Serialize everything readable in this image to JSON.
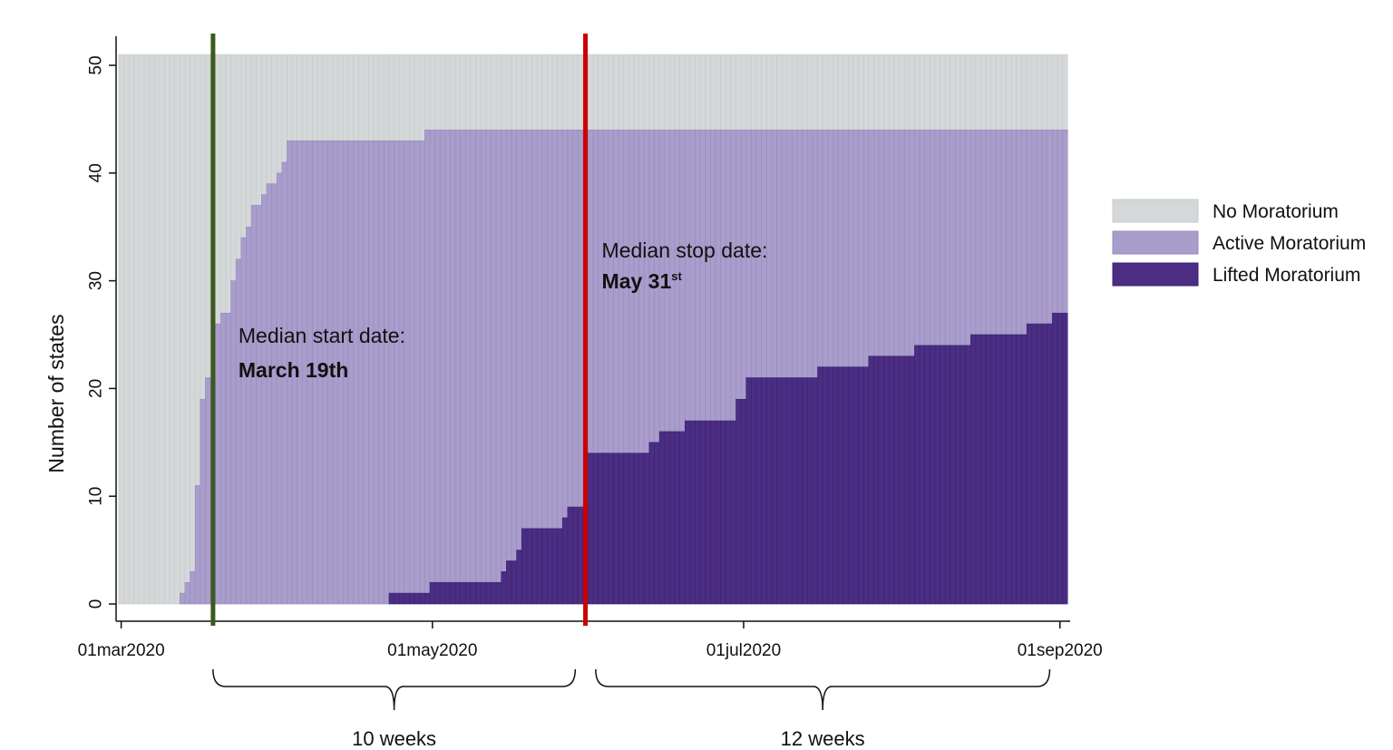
{
  "chart_data": {
    "type": "area",
    "ylabel": "Number of states",
    "xlim": [
      "2020-02-29",
      "2020-09-03"
    ],
    "ylim": [
      0,
      51
    ],
    "y_ticks": [
      0,
      10,
      20,
      30,
      40,
      50
    ],
    "x_ticks": [
      {
        "date": "2020-03-01",
        "label": "01mar2020"
      },
      {
        "date": "2020-05-01",
        "label": "01may2020"
      },
      {
        "date": "2020-07-01",
        "label": "01jul2020"
      },
      {
        "date": "2020-09-01",
        "label": "01sep2020"
      }
    ],
    "grid": false,
    "legend_position": "right",
    "total_states": 51,
    "series": [
      {
        "name": "No Moratorium",
        "color": "#d5d8d9"
      },
      {
        "name": "Active Moratorium",
        "color": "#a89dcb"
      },
      {
        "name": "Lifted Moratorium",
        "color": "#4b2e83"
      }
    ],
    "ever_moratorium": [
      {
        "date": "2020-03-13",
        "value": 1
      },
      {
        "date": "2020-03-14",
        "value": 2
      },
      {
        "date": "2020-03-15",
        "value": 3
      },
      {
        "date": "2020-03-16",
        "value": 11
      },
      {
        "date": "2020-03-17",
        "value": 19
      },
      {
        "date": "2020-03-18",
        "value": 21
      },
      {
        "date": "2020-03-20",
        "value": 26
      },
      {
        "date": "2020-03-21",
        "value": 27
      },
      {
        "date": "2020-03-23",
        "value": 30
      },
      {
        "date": "2020-03-24",
        "value": 32
      },
      {
        "date": "2020-03-25",
        "value": 34
      },
      {
        "date": "2020-03-26",
        "value": 35
      },
      {
        "date": "2020-03-27",
        "value": 37
      },
      {
        "date": "2020-03-29",
        "value": 38
      },
      {
        "date": "2020-03-30",
        "value": 39
      },
      {
        "date": "2020-04-01",
        "value": 40
      },
      {
        "date": "2020-04-02",
        "value": 41
      },
      {
        "date": "2020-04-03",
        "value": 43
      },
      {
        "date": "2020-04-30",
        "value": 44
      }
    ],
    "lifted_moratorium": [
      {
        "date": "2020-04-23",
        "value": 1
      },
      {
        "date": "2020-05-01",
        "value": 2
      },
      {
        "date": "2020-05-15",
        "value": 3
      },
      {
        "date": "2020-05-16",
        "value": 4
      },
      {
        "date": "2020-05-18",
        "value": 5
      },
      {
        "date": "2020-05-19",
        "value": 7
      },
      {
        "date": "2020-05-27",
        "value": 8
      },
      {
        "date": "2020-05-28",
        "value": 9
      },
      {
        "date": "2020-06-01",
        "value": 14
      },
      {
        "date": "2020-06-13",
        "value": 15
      },
      {
        "date": "2020-06-15",
        "value": 16
      },
      {
        "date": "2020-06-20",
        "value": 17
      },
      {
        "date": "2020-06-30",
        "value": 19
      },
      {
        "date": "2020-07-02",
        "value": 21
      },
      {
        "date": "2020-07-16",
        "value": 22
      },
      {
        "date": "2020-07-26",
        "value": 23
      },
      {
        "date": "2020-08-04",
        "value": 24
      },
      {
        "date": "2020-08-15",
        "value": 25
      },
      {
        "date": "2020-08-26",
        "value": 26
      },
      {
        "date": "2020-08-31",
        "value": 27
      }
    ],
    "last_date": "2020-09-02",
    "vertical_lines": [
      {
        "date": "2020-03-19",
        "color": "#3b5a1f",
        "label": "Median start date:",
        "label_bold": "March 19th"
      },
      {
        "date": "2020-05-31",
        "color": "#cc0000",
        "label": "Median stop date:",
        "label_bold": "May 31",
        "label_sup": "st"
      }
    ],
    "spans": [
      {
        "label": "10 weeks",
        "from": "2020-03-19",
        "to": "2020-05-29"
      },
      {
        "label": "12 weeks",
        "from": "2020-06-02",
        "to": "2020-08-30"
      }
    ]
  }
}
